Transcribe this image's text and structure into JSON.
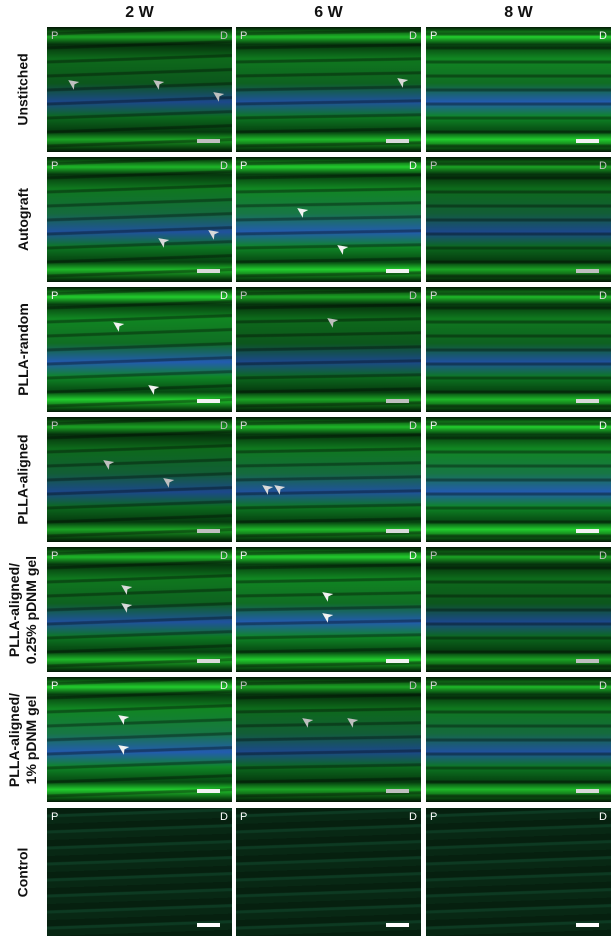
{
  "columns": [
    "2 W",
    "6 W",
    "8 W"
  ],
  "rows": [
    {
      "label": "Unstitched"
    },
    {
      "label": "Autograft"
    },
    {
      "label": "PLLA-random"
    },
    {
      "label": "PLLA-aligned"
    },
    {
      "label": "PLLA-aligned/\n0.25% pDNM gel"
    },
    {
      "label": "PLLA-aligned/\n1% pDNM gel"
    },
    {
      "label": "Control"
    }
  ],
  "panel_labels": {
    "proximal": "P",
    "distal": "D"
  },
  "colors": {
    "tissue_green": "#2fd23a",
    "nuclei_blue": "#2a5fb0",
    "background": "#031a06",
    "arrow": "#ffffff"
  }
}
